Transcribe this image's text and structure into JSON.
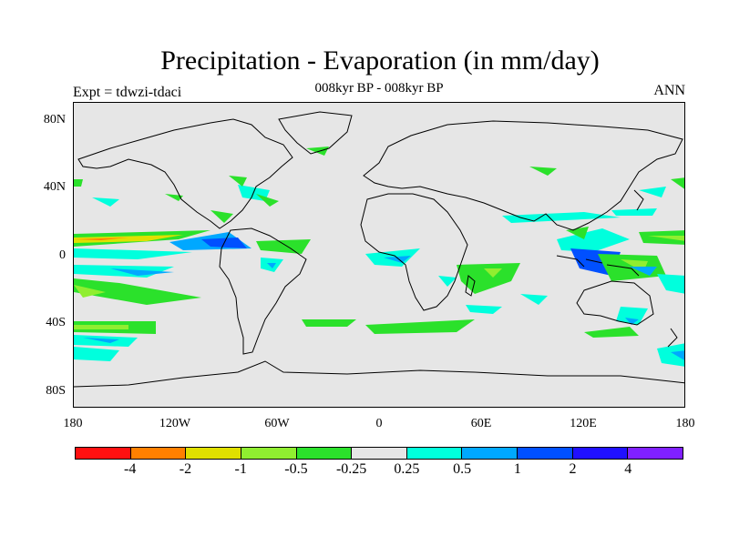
{
  "title": "Precipitation - Evaporation (in mm/day)",
  "subtitle": "008kyr BP - 008kyr BP",
  "expt_label": "Expt = tdwzi-tdaci",
  "season": "ANN",
  "lat_labels": [
    "80N",
    "40N",
    "0",
    "40S",
    "80S"
  ],
  "lon_labels": [
    "180",
    "120W",
    "60W",
    "0",
    "60E",
    "120E",
    "180"
  ],
  "colorbar": {
    "colors": [
      "#ff1010",
      "#ff8000",
      "#e0e000",
      "#90ee30",
      "#2be12b",
      "#e6e6e6",
      "#00ffdd",
      "#00a8ff",
      "#0050ff",
      "#2010ff",
      "#8020ff"
    ],
    "labels": [
      "-4",
      "-2",
      "-1",
      "-0.5",
      "-0.25",
      "0.25",
      "0.5",
      "1",
      "2",
      "4"
    ]
  },
  "map": {
    "background": "#e6e6e6",
    "coastline_color": "#000000"
  }
}
